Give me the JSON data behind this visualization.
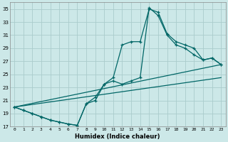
{
  "xlabel": "Humidex (Indice chaleur)",
  "bg_color": "#cce8e8",
  "grid_color": "#aacccc",
  "line_color": "#006666",
  "xlim": [
    -0.5,
    23.5
  ],
  "ylim": [
    17,
    36
  ],
  "xtick_labels": [
    "0",
    "1",
    "2",
    "3",
    "4",
    "5",
    "6",
    "7",
    "8",
    "9",
    "10",
    "11",
    "12",
    "13",
    "14",
    "15",
    "16",
    "17",
    "18",
    "19",
    "20",
    "21",
    "22",
    "23"
  ],
  "xtick_vals": [
    0,
    1,
    2,
    3,
    4,
    5,
    6,
    7,
    8,
    9,
    10,
    11,
    12,
    13,
    14,
    15,
    16,
    17,
    18,
    19,
    20,
    21,
    22,
    23
  ],
  "ytick_vals": [
    17,
    19,
    21,
    23,
    25,
    27,
    29,
    31,
    33,
    35
  ],
  "line1_x": [
    0,
    1,
    2,
    3,
    4,
    5,
    6,
    7,
    8,
    9,
    10,
    11,
    12,
    13,
    14,
    15,
    16,
    17,
    18,
    19,
    20,
    21,
    22,
    23
  ],
  "line1_y": [
    20.0,
    19.5,
    19.0,
    18.5,
    18.0,
    17.7,
    17.4,
    17.2,
    20.5,
    21.5,
    23.5,
    24.5,
    29.5,
    30.0,
    30.0,
    35.0,
    34.5,
    31.2,
    30.0,
    29.5,
    29.0,
    27.2,
    27.5,
    26.5
  ],
  "line2_x": [
    0,
    1,
    2,
    3,
    4,
    5,
    6,
    7,
    8,
    9,
    10,
    11,
    12,
    13,
    14,
    15,
    16,
    17,
    18,
    19,
    20,
    21,
    22,
    23
  ],
  "line2_y": [
    20.0,
    19.5,
    19.0,
    18.5,
    18.0,
    17.7,
    17.4,
    17.2,
    20.5,
    21.0,
    23.5,
    24.0,
    23.5,
    24.0,
    24.5,
    35.2,
    34.0,
    31.0,
    29.5,
    29.0,
    28.0,
    27.2,
    27.5,
    26.5
  ],
  "line3_x": [
    0,
    23
  ],
  "line3_y": [
    20.0,
    26.5
  ],
  "line4_x": [
    0,
    23
  ],
  "line4_y": [
    20.0,
    24.5
  ]
}
